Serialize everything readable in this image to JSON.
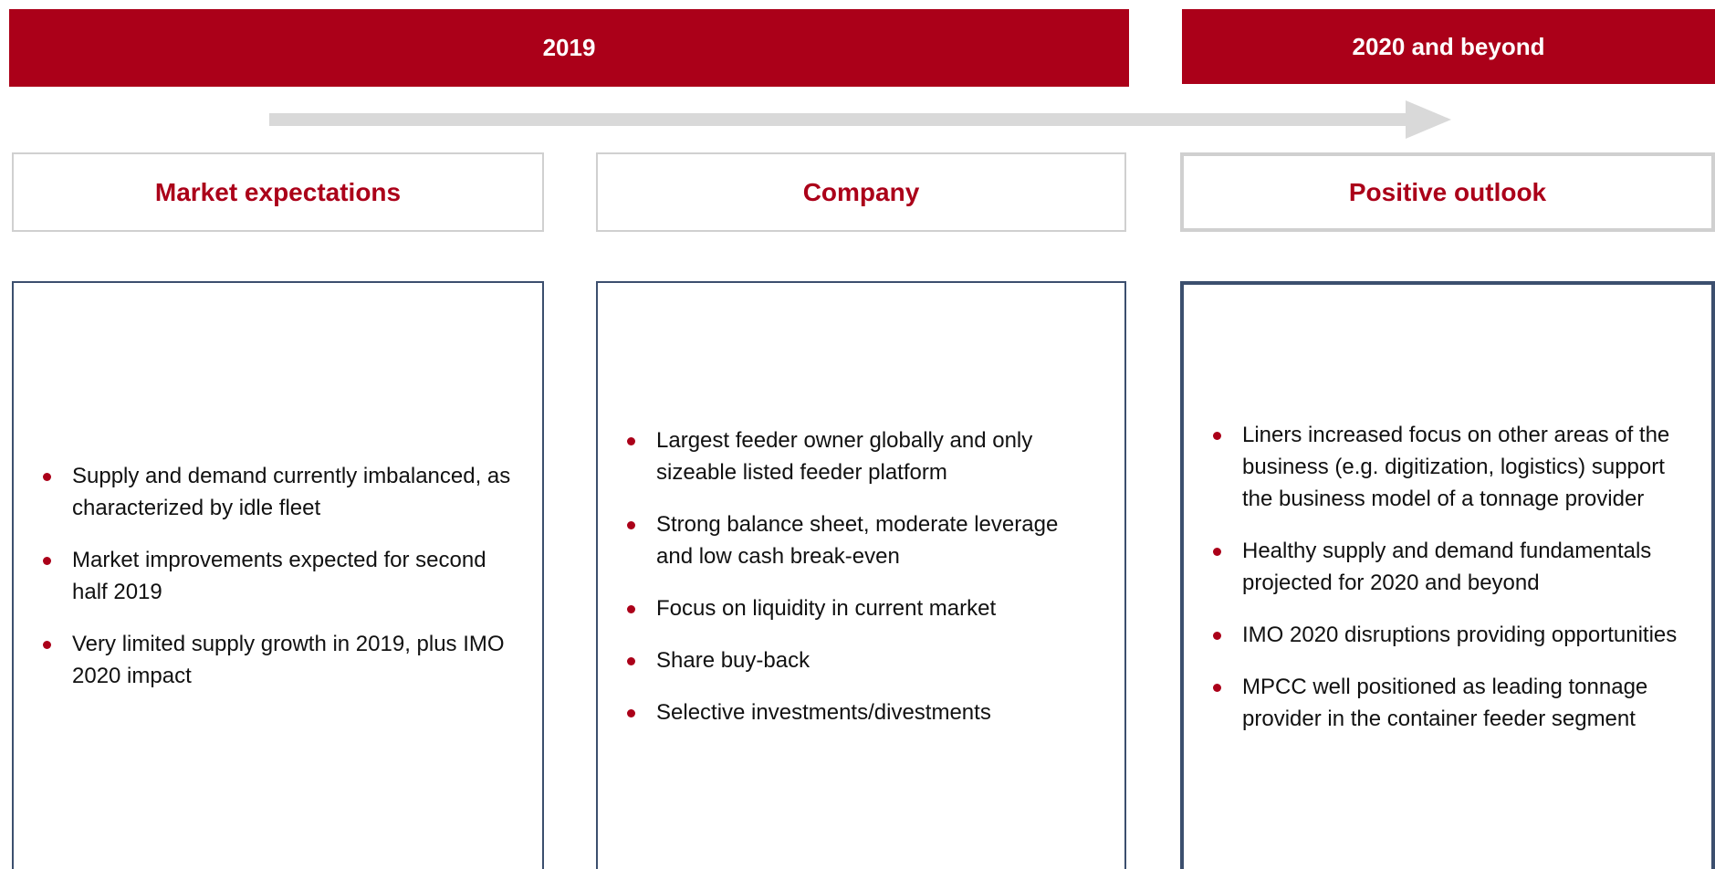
{
  "banners": [
    "2019",
    "2020 and beyond"
  ],
  "columns": [
    {
      "heading": "Market expectations",
      "bullets": [
        "Supply and demand currently imbalanced, as characterized by idle fleet",
        "Market improvements expected for second half 2019",
        "Very limited supply growth in 2019, plus IMO 2020 impact"
      ]
    },
    {
      "heading": "Company",
      "bullets": [
        "Largest feeder owner globally and only sizeable listed feeder platform",
        "Strong balance sheet, moderate leverage and low cash break-even",
        "Focus on liquidity in current market",
        "Share buy-back",
        "Selective investments/divestments"
      ]
    },
    {
      "heading": "Positive outlook",
      "bullets": [
        "Liners increased focus on other areas of the business (e.g. digitization, logistics) support the business model of a tonnage provider",
        "Healthy supply and demand fundamentals projected for 2020 and beyond",
        "IMO 2020 disruptions providing opportunities",
        "MPCC well positioned as leading tonnage provider in the container feeder segment"
      ]
    }
  ]
}
